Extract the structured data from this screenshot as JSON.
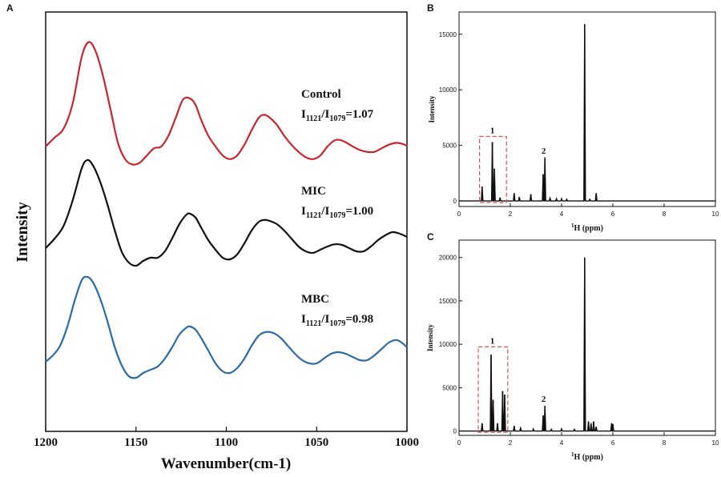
{
  "chart_data": [
    {
      "panel": "A",
      "type": "line",
      "xlabel": "Wavenumber(cm-1)",
      "ylabel": "Intensity",
      "xlim": [
        1200,
        1000
      ],
      "xticks": [
        "1200",
        "1150",
        "1100",
        "1050",
        "1000"
      ],
      "series": [
        {
          "name": "Control",
          "ratio_label": "I1121/I1079=1.07",
          "color": "#c8262e",
          "x": [
            1200,
            1195,
            1190,
            1185,
            1180,
            1176,
            1172,
            1168,
            1164,
            1160,
            1156,
            1152,
            1148,
            1144,
            1140,
            1136,
            1132,
            1128,
            1124,
            1120,
            1117,
            1114,
            1110,
            1106,
            1102,
            1098,
            1094,
            1090,
            1086,
            1082,
            1079,
            1076,
            1072,
            1068,
            1064,
            1060,
            1056,
            1052,
            1048,
            1044,
            1040,
            1037,
            1034,
            1030,
            1026,
            1022,
            1018,
            1014,
            1010,
            1006,
            1003,
            1000
          ],
          "y": [
            0.0,
            0.25,
            0.5,
            1.2,
            2.5,
            2.9,
            2.6,
            1.9,
            1.0,
            0.1,
            -0.35,
            -0.5,
            -0.45,
            -0.25,
            -0.05,
            0.0,
            0.3,
            0.8,
            1.3,
            1.33,
            1.15,
            0.75,
            0.3,
            0.0,
            -0.25,
            -0.35,
            -0.25,
            0.05,
            0.45,
            0.8,
            0.88,
            0.8,
            0.6,
            0.3,
            0.05,
            -0.15,
            -0.3,
            -0.35,
            -0.25,
            0.0,
            0.17,
            0.18,
            0.12,
            0.0,
            -0.1,
            -0.15,
            -0.15,
            -0.05,
            0.05,
            0.1,
            0.08,
            0.02
          ],
          "label_lines": [
            "Control",
            "I",
            "1121",
            "/I",
            "1079",
            "=1.07"
          ]
        },
        {
          "name": "MIC",
          "ratio_label": "I1121/I1079=1.00",
          "color": "#111111",
          "x": [
            1200,
            1195,
            1190,
            1185,
            1180,
            1177,
            1174,
            1170,
            1166,
            1162,
            1158,
            1154,
            1150,
            1146,
            1142,
            1138,
            1134,
            1130,
            1126,
            1122,
            1120,
            1117,
            1114,
            1110,
            1106,
            1102,
            1098,
            1094,
            1090,
            1086,
            1082,
            1079,
            1076,
            1072,
            1068,
            1064,
            1060,
            1056,
            1052,
            1048,
            1044,
            1040,
            1036,
            1032,
            1028,
            1024,
            1020,
            1016,
            1012,
            1008,
            1004,
            1000
          ],
          "y": [
            0.0,
            0.3,
            0.7,
            1.5,
            2.5,
            2.75,
            2.6,
            2.1,
            1.4,
            0.6,
            -0.1,
            -0.45,
            -0.55,
            -0.4,
            -0.3,
            -0.3,
            -0.1,
            0.3,
            0.75,
            1.05,
            1.07,
            0.95,
            0.65,
            0.25,
            -0.05,
            -0.3,
            -0.35,
            -0.2,
            0.15,
            0.55,
            0.82,
            0.88,
            0.85,
            0.75,
            0.55,
            0.3,
            0.05,
            -0.1,
            -0.15,
            -0.05,
            0.05,
            0.12,
            0.1,
            0.0,
            -0.1,
            -0.1,
            0.05,
            0.25,
            0.4,
            0.5,
            0.45,
            0.35
          ],
          "label_lines": [
            "MIC",
            "I",
            "1121",
            "/I",
            "1079",
            "=1.00"
          ]
        },
        {
          "name": "MBC",
          "ratio_label": "I1121/I1079=0.98",
          "color": "#2b6ca8",
          "x": [
            1200,
            1196,
            1192,
            1188,
            1184,
            1180,
            1177,
            1174,
            1170,
            1166,
            1162,
            1158,
            1154,
            1150,
            1146,
            1142,
            1138,
            1134,
            1130,
            1126,
            1122,
            1120,
            1117,
            1114,
            1110,
            1106,
            1102,
            1098,
            1094,
            1090,
            1086,
            1082,
            1078,
            1074,
            1070,
            1066,
            1062,
            1058,
            1054,
            1050,
            1046,
            1042,
            1038,
            1034,
            1030,
            1026,
            1022,
            1018,
            1014,
            1010,
            1006,
            1003,
            1000
          ],
          "y": [
            0.0,
            0.2,
            0.5,
            1.1,
            1.9,
            2.55,
            2.65,
            2.5,
            2.0,
            1.3,
            0.5,
            -0.1,
            -0.45,
            -0.5,
            -0.35,
            -0.25,
            -0.15,
            0.1,
            0.45,
            0.85,
            1.07,
            1.1,
            1.0,
            0.75,
            0.35,
            -0.05,
            -0.3,
            -0.35,
            -0.2,
            0.1,
            0.5,
            0.82,
            0.93,
            0.9,
            0.75,
            0.5,
            0.25,
            0.05,
            -0.05,
            -0.05,
            0.1,
            0.25,
            0.3,
            0.25,
            0.15,
            0.05,
            0.05,
            0.2,
            0.4,
            0.6,
            0.68,
            0.6,
            0.45
          ],
          "label_lines": [
            "MBC",
            "I",
            "1121",
            "/I",
            "1079",
            "=0.98"
          ]
        }
      ]
    },
    {
      "panel": "B",
      "type": "line",
      "xlabel_sup": "1",
      "xlabel_main": "H (ppm)",
      "ylabel": "Intensity",
      "xlim": [
        0,
        10
      ],
      "ylim": [
        -500,
        17000
      ],
      "xticks": [
        "0",
        "2",
        "4",
        "6",
        "8",
        "10"
      ],
      "yticks": [
        "0",
        "5000",
        "10000",
        "15000"
      ],
      "peaks": [
        [
          0.9,
          1300
        ],
        [
          1.3,
          5300
        ],
        [
          1.38,
          2900
        ],
        [
          1.6,
          300
        ],
        [
          2.15,
          700
        ],
        [
          2.35,
          350
        ],
        [
          2.8,
          600
        ],
        [
          3.28,
          2400
        ],
        [
          3.35,
          3900
        ],
        [
          3.55,
          250
        ],
        [
          3.8,
          200
        ],
        [
          4.0,
          200
        ],
        [
          4.2,
          150
        ],
        [
          4.9,
          15900
        ],
        [
          5.1,
          150
        ],
        [
          5.35,
          700
        ]
      ],
      "annotations": [
        {
          "text": "1",
          "x": 1.3
        },
        {
          "text": "2",
          "x": 3.3
        }
      ],
      "highlight_box": {
        "x0": 0.8,
        "x1": 1.85,
        "y0": -150,
        "y1": 5800
      }
    },
    {
      "panel": "C",
      "type": "line",
      "xlabel_sup": "1",
      "xlabel_main": "H (ppm)",
      "ylabel": "Intensity",
      "xlim": [
        0,
        10
      ],
      "ylim": [
        -500,
        22000
      ],
      "xticks": [
        "0",
        "2",
        "4",
        "6",
        "8",
        "10"
      ],
      "yticks": [
        "0",
        "5000",
        "10000",
        "15000",
        "20000"
      ],
      "peaks": [
        [
          0.9,
          900
        ],
        [
          1.25,
          8800
        ],
        [
          1.33,
          3600
        ],
        [
          1.5,
          900
        ],
        [
          1.7,
          4600
        ],
        [
          1.78,
          4200
        ],
        [
          2.15,
          600
        ],
        [
          2.4,
          350
        ],
        [
          2.9,
          250
        ],
        [
          3.28,
          1800
        ],
        [
          3.35,
          2900
        ],
        [
          3.6,
          200
        ],
        [
          4.0,
          250
        ],
        [
          4.5,
          200
        ],
        [
          4.9,
          20000
        ],
        [
          5.05,
          1100
        ],
        [
          5.15,
          900
        ],
        [
          5.25,
          1100
        ],
        [
          5.35,
          500
        ],
        [
          5.95,
          900
        ],
        [
          6.0,
          800
        ]
      ],
      "annotations": [
        {
          "text": "1",
          "x": 1.3
        },
        {
          "text": "2",
          "x": 3.3
        }
      ],
      "highlight_box": {
        "x0": 0.75,
        "x1": 1.9,
        "y0": -150,
        "y1": 9700
      }
    }
  ]
}
